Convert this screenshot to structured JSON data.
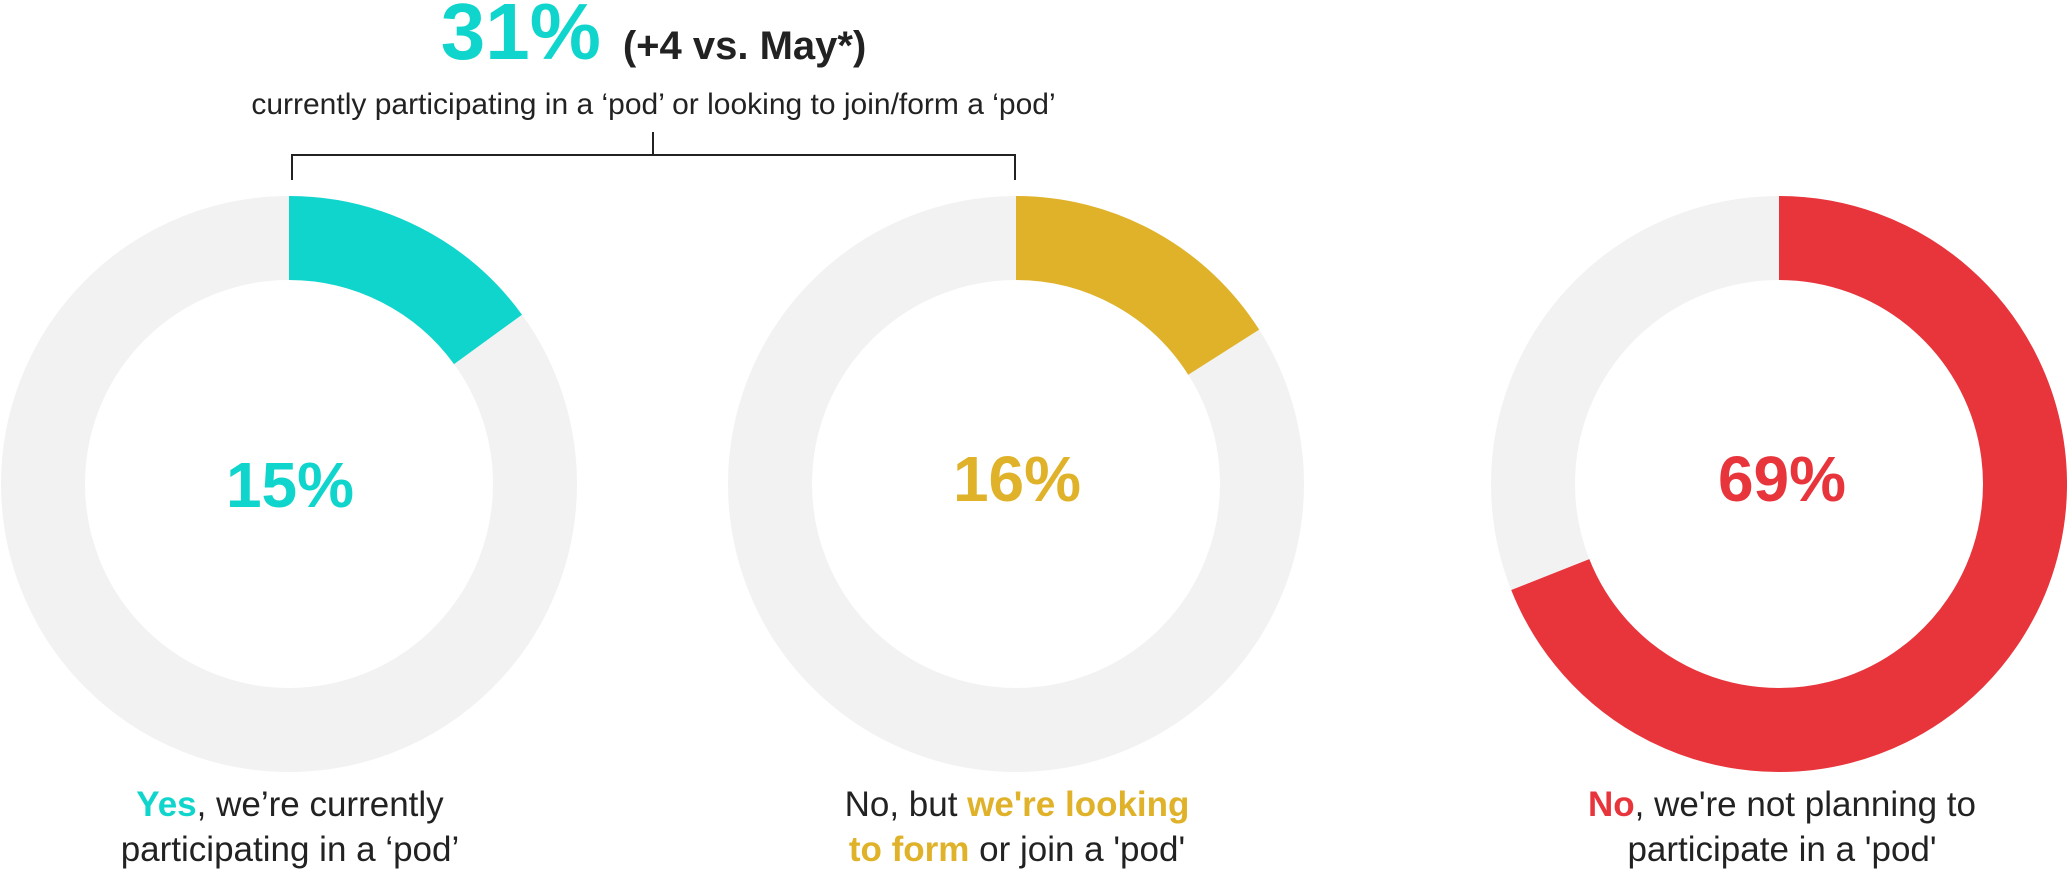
{
  "headline": {
    "combined_pct": "31%",
    "delta": "(+4 vs. May*)",
    "subtitle": "currently participating in a ‘pod’ or looking to join/form a ‘pod’"
  },
  "chart_data": {
    "type": "pie",
    "variant": "donut",
    "title": "",
    "track_color": "#f2f2f2",
    "slices": [
      {
        "value": 15,
        "label": "15%",
        "color": "#10d5cc",
        "caption": {
          "highlight": "Yes",
          "rest_line1": ", we’re currently",
          "line2": "participating in a ‘pod’"
        }
      },
      {
        "value": 16,
        "label": "16%",
        "color": "#e0b229",
        "caption": {
          "prefix": "No, but ",
          "highlight_line1": "we're looking",
          "highlight_line2": "to form",
          "rest_line2": " or join a 'pod'"
        }
      },
      {
        "value": 69,
        "label": "69%",
        "color": "#e8343b",
        "caption": {
          "highlight": "No",
          "rest_line1": ", we're not planning to",
          "line2": "participate in a 'pod'"
        }
      }
    ]
  }
}
